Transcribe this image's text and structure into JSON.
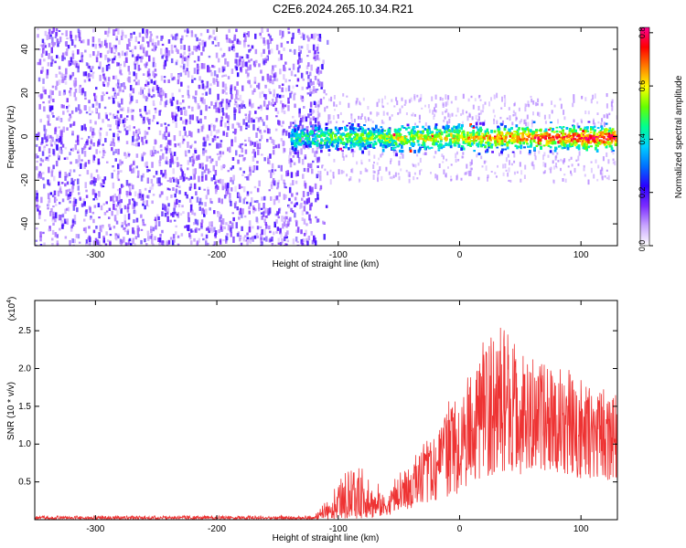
{
  "title": "C2E6.2024.265.10.34.R21",
  "chart_data": [
    {
      "type": "heatmap",
      "title": "C2E6.2024.265.10.34.R21",
      "xlabel": "Height of straight line (km)",
      "ylabel": "Frequency (Hz)",
      "xlim": [
        -350,
        130
      ],
      "ylim": [
        -50,
        50
      ],
      "xticks": [
        -300,
        -200,
        -100,
        0,
        100
      ],
      "yticks": [
        -40,
        -20,
        0,
        20,
        40
      ],
      "grid": false,
      "description_of_values": {
        "noise_region_x": [
          -350,
          -115
        ],
        "signal_band_x": [
          -140,
          130
        ],
        "signal_band_center_hz": 0,
        "signal_band_halfwidth_hz": 8,
        "peak_normalized_amplitude": 0.8
      },
      "colorbar": {
        "label": "Normalized spectral amplitude",
        "range": [
          0.0,
          0.82
        ],
        "ticks": [
          0.0,
          0.2,
          0.4,
          0.6,
          0.8
        ],
        "tick_labels": [
          "0.0",
          "0.2",
          "0.4",
          "0.6",
          "0.8"
        ],
        "colors": [
          "#ffffff",
          "#c9a6ff",
          "#7b2cff",
          "#2a00ff",
          "#0070ff",
          "#00d0ff",
          "#00ff90",
          "#66ff00",
          "#ffff00",
          "#ff8000",
          "#ff0000",
          "#ff0090"
        ]
      }
    },
    {
      "type": "line",
      "xlabel": "Height of straight line (km)",
      "ylabel": "SNR (10 * v/v)",
      "y_multiplier_label": "(x10",
      "y_multiplier_exp": "4",
      "y_multiplier_close": ")",
      "xlim": [
        -350,
        130
      ],
      "ylim": [
        0,
        2.9
      ],
      "xticks": [
        -300,
        -200,
        -100,
        0,
        100
      ],
      "yticks": [
        0.5,
        1.0,
        1.5,
        2.0,
        2.5
      ],
      "ytick_labels": [
        "0.5",
        "1.0",
        "1.5",
        "2.0",
        "2.5"
      ],
      "grid": false,
      "series": [
        {
          "color": "#ee3333",
          "envelope_x": [
            -350,
            -120,
            -105,
            -100,
            -90,
            -80,
            -70,
            -60,
            -50,
            -40,
            -30,
            -20,
            -10,
            0,
            10,
            20,
            30,
            40,
            50,
            60,
            70,
            80,
            90,
            100,
            110,
            120,
            130
          ],
          "envelope_max": [
            0.05,
            0.05,
            0.35,
            0.5,
            0.7,
            0.75,
            0.55,
            0.35,
            0.65,
            0.8,
            1.0,
            1.15,
            1.55,
            1.75,
            2.05,
            2.4,
            2.9,
            2.6,
            2.3,
            2.2,
            2.1,
            2.0,
            2.1,
            1.95,
            1.8,
            1.75,
            1.8
          ],
          "envelope_min": [
            0.0,
            0.0,
            0.02,
            0.05,
            0.05,
            0.05,
            0.05,
            0.05,
            0.1,
            0.15,
            0.2,
            0.25,
            0.3,
            0.35,
            0.5,
            0.55,
            0.6,
            0.6,
            0.6,
            0.65,
            0.6,
            0.6,
            0.55,
            0.55,
            0.55,
            0.5,
            0.5
          ],
          "envelope_mean": [
            0.02,
            0.02,
            0.1,
            0.2,
            0.25,
            0.3,
            0.2,
            0.18,
            0.3,
            0.45,
            0.6,
            0.75,
            0.95,
            1.1,
            1.3,
            1.45,
            1.55,
            1.5,
            1.4,
            1.35,
            1.3,
            1.25,
            1.3,
            1.25,
            1.2,
            1.2,
            1.2
          ]
        }
      ]
    }
  ]
}
